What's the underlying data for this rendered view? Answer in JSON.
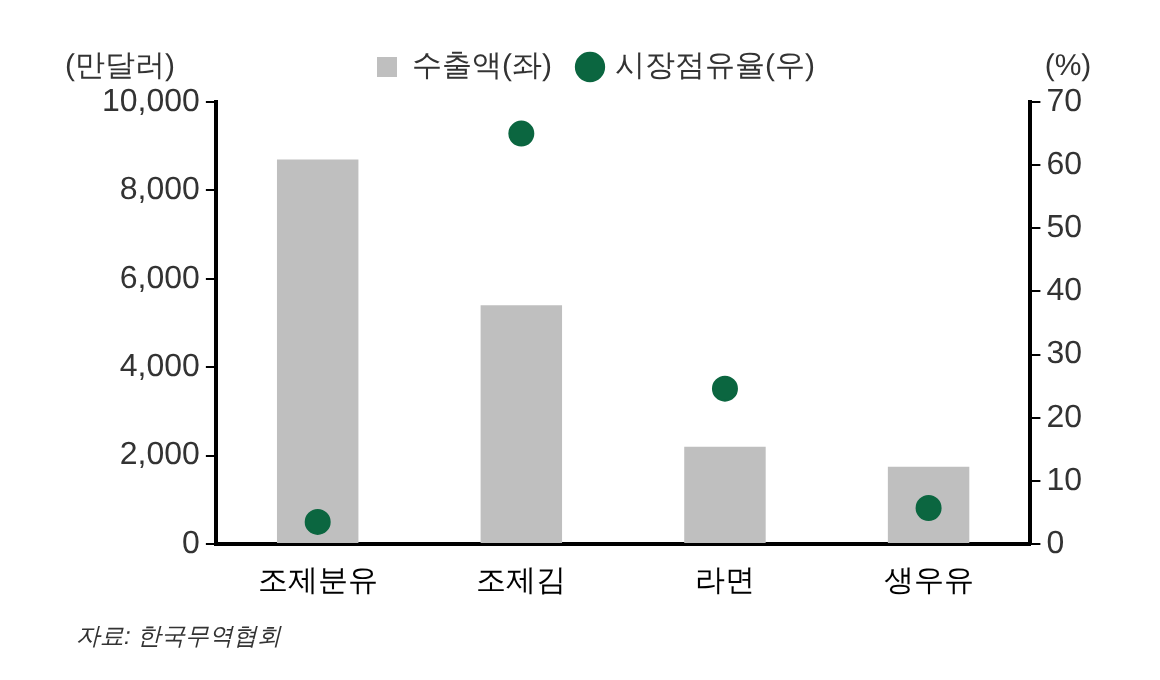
{
  "chart_data": {
    "type": "bar",
    "categories": [
      "조제분유",
      "조제김",
      "라면",
      "생우유"
    ],
    "series": [
      {
        "name": "수출액(좌)",
        "color": "#bfbfbf",
        "values": [
          8700,
          5400,
          2200,
          1750
        ]
      },
      {
        "name": "시장점유율(우)",
        "type": "scatter",
        "axis": "y2",
        "color": "#0b6640",
        "values": [
          3.5,
          65,
          24.6,
          5.7
        ]
      }
    ],
    "ylabel": "(만달러)",
    "y2label": "(%)",
    "ylim": [
      0,
      10000
    ],
    "yticks": [
      {
        "value": 0,
        "label": "0"
      },
      {
        "value": 2000,
        "label": "2,000"
      },
      {
        "value": 4000,
        "label": "4,000"
      },
      {
        "value": 6000,
        "label": "6,000"
      },
      {
        "value": 8000,
        "label": "8,000"
      },
      {
        "value": 10000,
        "label": "10,000"
      }
    ],
    "y2lim": [
      0,
      70
    ],
    "y2ticks": [
      0,
      10,
      20,
      30,
      40,
      50,
      60,
      70
    ],
    "grid": false,
    "legend": "top",
    "marker": "circle",
    "annotations": [
      "자료: 한국무역협회"
    ]
  }
}
